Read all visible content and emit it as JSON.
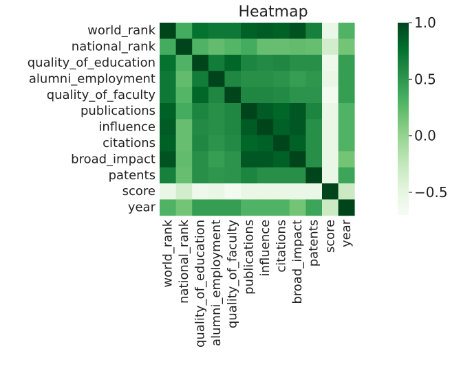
{
  "chart_data": {
    "type": "heatmap",
    "title": "Heatmap",
    "xlabel": "",
    "ylabel": "",
    "row_labels": [
      "world_rank",
      "national_rank",
      "quality_of_education",
      "alumni_employment",
      "quality_of_faculty",
      "publications",
      "influence",
      "citations",
      "broad_impact",
      "patents",
      "score",
      "year"
    ],
    "col_labels": [
      "world_rank",
      "national_rank",
      "quality_of_education",
      "alumni_employment",
      "quality_of_faculty",
      "publications",
      "influence",
      "citations",
      "broad_impact",
      "patents",
      "score",
      "year"
    ],
    "values": [
      [
        1.0,
        0.35,
        0.75,
        0.7,
        0.7,
        0.85,
        0.88,
        0.85,
        0.92,
        0.65,
        -0.55,
        0.3
      ],
      [
        0.35,
        1.0,
        0.3,
        0.22,
        0.28,
        0.35,
        0.2,
        0.2,
        0.22,
        0.2,
        -0.35,
        0.15
      ],
      [
        0.75,
        0.3,
        1.0,
        0.68,
        0.82,
        0.62,
        0.58,
        0.6,
        0.55,
        0.55,
        -0.6,
        0.45
      ],
      [
        0.7,
        0.22,
        0.68,
        1.0,
        0.6,
        0.55,
        0.55,
        0.52,
        0.45,
        0.5,
        -0.55,
        0.45
      ],
      [
        0.7,
        0.28,
        0.82,
        0.6,
        1.0,
        0.6,
        0.6,
        0.58,
        0.52,
        0.52,
        -0.65,
        0.45
      ],
      [
        0.85,
        0.35,
        0.62,
        0.55,
        0.6,
        1.0,
        0.88,
        0.82,
        0.9,
        0.62,
        -0.55,
        0.3
      ],
      [
        0.88,
        0.2,
        0.58,
        0.55,
        0.6,
        0.88,
        1.0,
        0.85,
        0.9,
        0.55,
        -0.55,
        0.3
      ],
      [
        0.85,
        0.2,
        0.6,
        0.52,
        0.58,
        0.82,
        0.85,
        1.0,
        0.85,
        0.55,
        -0.55,
        0.3
      ],
      [
        0.92,
        0.22,
        0.55,
        0.45,
        0.52,
        0.9,
        0.9,
        0.85,
        1.0,
        0.55,
        -0.55,
        0.15
      ],
      [
        0.65,
        0.2,
        0.55,
        0.5,
        0.52,
        0.62,
        0.55,
        0.55,
        0.55,
        1.0,
        -0.55,
        0.4
      ],
      [
        -0.55,
        -0.35,
        -0.6,
        -0.55,
        -0.65,
        -0.55,
        -0.55,
        -0.55,
        -0.55,
        -0.55,
        1.0,
        -0.3
      ],
      [
        0.3,
        0.15,
        0.45,
        0.45,
        0.45,
        0.3,
        0.3,
        0.3,
        0.15,
        0.4,
        -0.3,
        1.0
      ]
    ],
    "vmin": -0.7,
    "vmax": 1.0,
    "colorbar": {
      "ticks": [
        1.0,
        0.5,
        0.0,
        -0.5
      ],
      "tick_labels": [
        "1.0",
        "0.5",
        "0.0",
        "−0.5"
      ],
      "colors": [
        "#f7fcf5",
        "#e5f5e0",
        "#c7e9c0",
        "#a1d99b",
        "#74c476",
        "#41ab5d",
        "#238b45",
        "#006d2c",
        "#00441b"
      ]
    }
  }
}
